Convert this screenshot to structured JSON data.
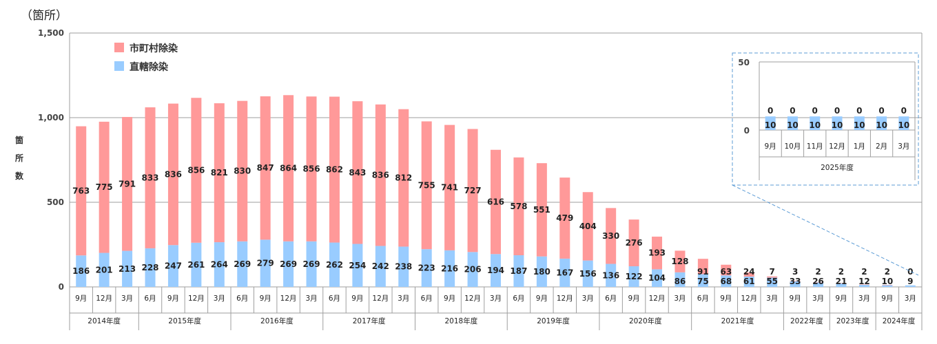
{
  "unit_label": "（箇所）",
  "colors": {
    "municipal": "#ff9999",
    "direct": "#99ccff",
    "grid": "#9e9e9e",
    "inset_border": "#5b9bd5"
  },
  "chart_data": [
    {
      "type": "bar",
      "stacked": true,
      "ylabel": "箇所数",
      "ylim": [
        0,
        1500
      ],
      "yticks": [
        "0",
        "500",
        "1,000",
        "1,500"
      ],
      "grid": true,
      "legend_position": "top-left",
      "categories": [
        "9月",
        "12月",
        "3月",
        "6月",
        "9月",
        "12月",
        "3月",
        "6月",
        "9月",
        "12月",
        "3月",
        "6月",
        "9月",
        "12月",
        "3月",
        "6月",
        "9月",
        "12月",
        "3月",
        "6月",
        "9月",
        "12月",
        "3月",
        "6月",
        "9月",
        "12月",
        "3月",
        "6月",
        "9月",
        "12月",
        "3月",
        "9月",
        "3月",
        "9月",
        "3月",
        "9月",
        "3月"
      ],
      "category_labels_secondline": [
        "",
        "",
        "",
        "",
        "",
        "",
        "",
        "",
        "",
        "",
        "",
        "",
        "",
        "",
        "",
        "",
        "",
        "",
        "",
        "",
        "",
        "",
        "",
        "",
        "",
        "",
        "",
        "",
        "",
        "",
        "",
        "",
        "",
        "",
        "",
        "",
        ""
      ],
      "year_groups": [
        {
          "label": "2014年度",
          "count": 3
        },
        {
          "label": "2015年度",
          "count": 4
        },
        {
          "label": "2016年度",
          "count": 4
        },
        {
          "label": "2017年度",
          "count": 4
        },
        {
          "label": "2018年度",
          "count": 4
        },
        {
          "label": "2019年度",
          "count": 4
        },
        {
          "label": "2020年度",
          "count": 4
        },
        {
          "label": "2021年度",
          "count": 4
        },
        {
          "label": "2022年度",
          "count": 2
        },
        {
          "label": "2023年度",
          "count": 2
        },
        {
          "label": "2024年度",
          "count": 2
        }
      ],
      "series": [
        {
          "name": "直轄除染",
          "color": "#99ccff",
          "values": [
            186,
            201,
            213,
            228,
            247,
            261,
            264,
            269,
            279,
            269,
            269,
            262,
            254,
            242,
            238,
            223,
            216,
            206,
            194,
            187,
            180,
            167,
            156,
            136,
            122,
            104,
            86,
            75,
            68,
            61,
            55,
            33,
            26,
            21,
            12,
            10,
            9
          ]
        },
        {
          "name": "市町村除染",
          "color": "#ff9999",
          "values": [
            763,
            775,
            791,
            833,
            836,
            856,
            821,
            830,
            847,
            864,
            856,
            862,
            843,
            836,
            812,
            755,
            741,
            727,
            616,
            578,
            551,
            479,
            404,
            330,
            276,
            193,
            128,
            91,
            63,
            24,
            7,
            3,
            2,
            2,
            2,
            2,
            0
          ]
        }
      ]
    },
    {
      "type": "bar",
      "stacked": true,
      "ylim": [
        0,
        50
      ],
      "yticks": [
        "0",
        "50"
      ],
      "categories": [
        "9月",
        "10月",
        "11月",
        "12月",
        "1月",
        "2月",
        "3月"
      ],
      "year_groups": [
        {
          "label": "2025年度",
          "count": 7
        }
      ],
      "series": [
        {
          "name": "直轄除染",
          "color": "#99ccff",
          "values": [
            10,
            10,
            10,
            10,
            10,
            10,
            10
          ]
        },
        {
          "name": "市町村除染",
          "color": "#ff9999",
          "values": [
            0,
            0,
            0,
            0,
            0,
            0,
            0
          ]
        }
      ]
    }
  ]
}
